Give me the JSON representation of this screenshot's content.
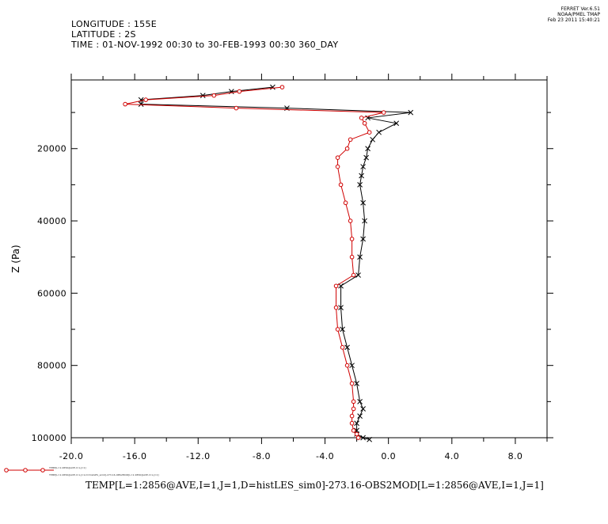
{
  "header": {
    "longitude": "LONGITUDE : 155E",
    "latitude": "LATITUDE : 2S",
    "time": "TIME : 01-NOV-1992 00:30 to 30-FEB-1993 00:30 360_DAY"
  },
  "stamp": {
    "line1": "FERRET  Ver.6.51",
    "line2": "NOAA/PMEL TMAP",
    "line3": "Feb 23 2011 15:40:21"
  },
  "caption": "TEMP[L=1:2856@AVE,I=1,J=1,D=histLES_sim0]-273.16-OBS2MOD[L=1:2856@AVE,I=1,J=1]",
  "legend": {
    "line1": "TEMP[L=1:2856@AVE,I=1,J=1]",
    "line2": "TEMP[L=1:2856@AVE,I=1,J=1,D=histLES_sim0]-273.16-OBS2MOD[L=1:2856@AVE,I=1,J=1]"
  },
  "colors": {
    "series_black": "#000000",
    "series_red": "#d00000"
  },
  "chart_data": {
    "type": "line",
    "ylabel": "Z (Pa)",
    "xlabel": "",
    "xlim": [
      -20,
      10
    ],
    "ylim": [
      100000,
      1000
    ],
    "y_inverted": true,
    "x_ticks": [
      -20.0,
      -16.0,
      -12.0,
      -8.0,
      -4.0,
      0.0,
      4.0,
      8.0
    ],
    "x_tick_labels": [
      "-20.0",
      "-16.0",
      "-12.0",
      "-8.0",
      "-4.0",
      "0.0",
      "4.0",
      "8.0"
    ],
    "y_ticks": [
      20000,
      40000,
      60000,
      80000,
      100000
    ],
    "y_tick_labels": [
      "20000",
      "40000",
      "60000",
      "80000",
      "100000"
    ],
    "series": [
      {
        "marker": "x",
        "color": "#000000",
        "points": [
          [
            -7.3,
            3000
          ],
          [
            -9.9,
            4200
          ],
          [
            -11.7,
            5300
          ],
          [
            -15.6,
            6500
          ],
          [
            -15.6,
            7700
          ],
          [
            -6.4,
            8800
          ],
          [
            1.4,
            10000
          ],
          [
            -1.3,
            11500
          ],
          [
            0.5,
            13000
          ],
          [
            -0.6,
            15500
          ],
          [
            -1.0,
            17500
          ],
          [
            -1.3,
            20000
          ],
          [
            -1.4,
            22500
          ],
          [
            -1.6,
            25000
          ],
          [
            -1.7,
            27500
          ],
          [
            -1.8,
            30000
          ],
          [
            -1.6,
            35000
          ],
          [
            -1.5,
            40000
          ],
          [
            -1.6,
            45000
          ],
          [
            -1.8,
            50000
          ],
          [
            -1.9,
            55000
          ],
          [
            -3.0,
            58000
          ],
          [
            -3.0,
            64000
          ],
          [
            -2.9,
            70000
          ],
          [
            -2.6,
            75000
          ],
          [
            -2.3,
            80000
          ],
          [
            -2.0,
            85000
          ],
          [
            -1.8,
            90000
          ],
          [
            -1.6,
            92000
          ],
          [
            -1.8,
            94000
          ],
          [
            -2.0,
            96000
          ],
          [
            -2.0,
            98000
          ],
          [
            -2.0,
            99000
          ],
          [
            -1.6,
            100000
          ],
          [
            -1.2,
            100500
          ]
        ]
      },
      {
        "marker": "circle",
        "color": "#d00000",
        "points": [
          [
            -6.7,
            3000
          ],
          [
            -9.4,
            4200
          ],
          [
            -11.0,
            5300
          ],
          [
            -15.3,
            6500
          ],
          [
            -16.6,
            7700
          ],
          [
            -9.6,
            8800
          ],
          [
            -0.3,
            10000
          ],
          [
            -1.7,
            11500
          ],
          [
            -1.5,
            13000
          ],
          [
            -1.2,
            15500
          ],
          [
            -2.4,
            17500
          ],
          [
            -2.6,
            20000
          ],
          [
            -3.2,
            22500
          ],
          [
            -3.2,
            25000
          ],
          [
            -3.0,
            30000
          ],
          [
            -2.7,
            35000
          ],
          [
            -2.4,
            40000
          ],
          [
            -2.3,
            45000
          ],
          [
            -2.3,
            50000
          ],
          [
            -2.2,
            55000
          ],
          [
            -3.3,
            58000
          ],
          [
            -3.3,
            64000
          ],
          [
            -3.2,
            70000
          ],
          [
            -2.9,
            75000
          ],
          [
            -2.6,
            80000
          ],
          [
            -2.3,
            85000
          ],
          [
            -2.2,
            90000
          ],
          [
            -2.2,
            92000
          ],
          [
            -2.3,
            94000
          ],
          [
            -2.3,
            96000
          ],
          [
            -2.2,
            98000
          ],
          [
            -2.0,
            99000
          ],
          [
            -1.9,
            100000
          ]
        ]
      }
    ]
  }
}
